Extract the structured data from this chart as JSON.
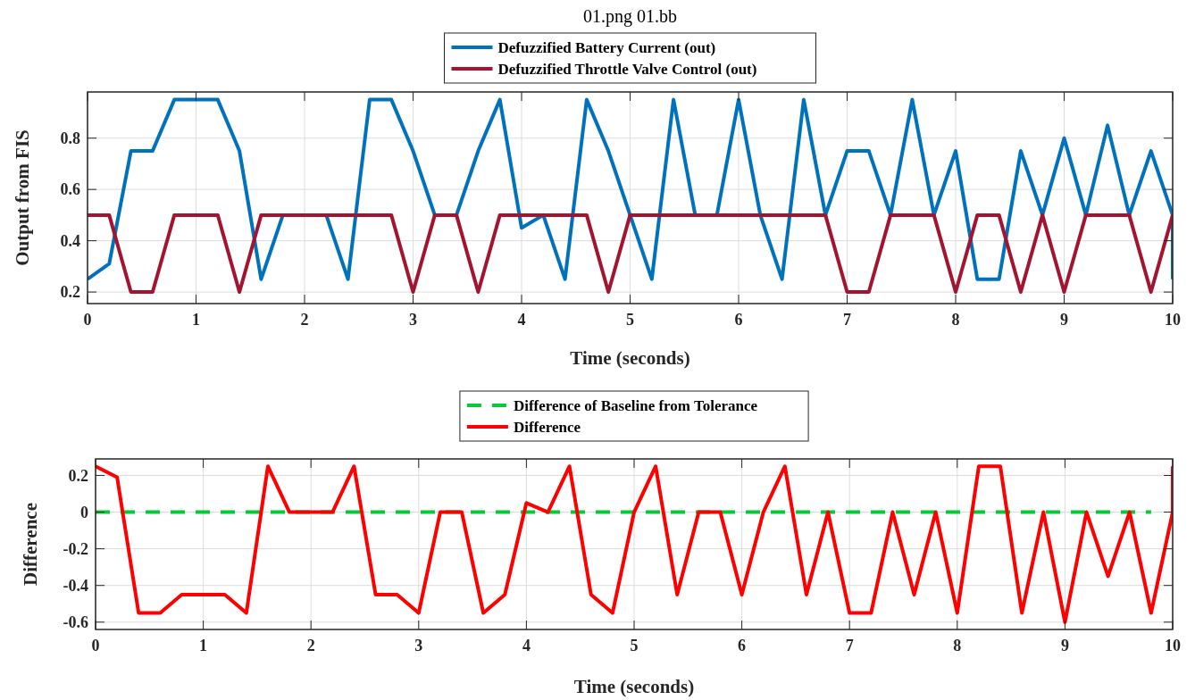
{
  "chart_data": [
    {
      "type": "line",
      "title": "01.png 01.bb",
      "xlabel": "Time (seconds)",
      "ylabel": "Output from FIS",
      "xlim": [
        0,
        10
      ],
      "ylim": [
        0.155,
        0.98
      ],
      "xticks": [
        0,
        1,
        2,
        3,
        4,
        5,
        6,
        7,
        8,
        9,
        10
      ],
      "yticks": [
        0.2,
        0.4,
        0.6,
        0.8
      ],
      "grid": true,
      "legend": "top",
      "line_style": "solid",
      "x": [
        0,
        0.2,
        0.4,
        0.6,
        0.8,
        1,
        1.2,
        1.4,
        1.6,
        1.8,
        2,
        2.2,
        2.4,
        2.6,
        2.8,
        3,
        3.2,
        3.4,
        3.6,
        3.8,
        4,
        4.2,
        4.4,
        4.6,
        4.8,
        5,
        5.2,
        5.4,
        5.6,
        5.8,
        6,
        6.2,
        6.4,
        6.6,
        6.8,
        7,
        7.2,
        7.4,
        7.6,
        7.8,
        8,
        8.2,
        8.4,
        8.6,
        8.8,
        9,
        9.2,
        9.4,
        9.6,
        9.8,
        10
      ],
      "series": [
        {
          "name": "Defuzzified Battery Current (out)",
          "color": "#0072bd",
          "x": [
            0,
            0.2,
            0.4,
            0.6,
            0.8,
            1,
            1.2,
            1.4,
            1.6,
            1.8,
            2,
            2.2,
            2.4,
            2.6,
            2.8,
            3,
            3.2,
            3.4,
            3.6,
            3.8,
            4,
            4.2,
            4.4,
            4.6,
            4.8,
            5,
            5.2,
            5.4,
            5.6,
            5.8,
            6,
            6.2,
            6.4,
            6.6,
            6.8,
            7,
            7.2,
            7.4,
            7.6,
            7.8,
            8,
            8.2,
            8.4,
            8.6,
            8.8,
            9,
            9.2,
            9.4,
            9.6,
            9.8,
            10,
            10
          ],
          "values": [
            0.25,
            0.31,
            0.75,
            0.75,
            0.95,
            0.95,
            0.95,
            0.75,
            0.25,
            0.5,
            null,
            0.5,
            0.25,
            0.95,
            0.95,
            0.75,
            0.5,
            0.5,
            0.75,
            0.95,
            0.45,
            0.5,
            0.25,
            0.95,
            0.75,
            0.5,
            0.25,
            0.95,
            0.5,
            0.5,
            0.95,
            0.5,
            0.25,
            0.95,
            0.5,
            0.75,
            0.75,
            0.5,
            0.95,
            0.5,
            0.75,
            0.25,
            0.25,
            0.75,
            0.5,
            0.8,
            0.5,
            0.85,
            0.5,
            0.75,
            0.5,
            0.25
          ]
        },
        {
          "name": "Defuzzified Throttle Valve Control (out)",
          "color": "#a2142f",
          "values": [
            0.5,
            0.5,
            0.2,
            0.2,
            0.5,
            0.5,
            0.5,
            0.2,
            0.5,
            0.5,
            0.5,
            0.5,
            0.5,
            0.5,
            0.5,
            0.2,
            0.5,
            0.5,
            0.2,
            0.5,
            0.5,
            0.5,
            0.5,
            0.5,
            0.2,
            0.5,
            0.5,
            0.5,
            0.5,
            0.5,
            0.5,
            0.5,
            0.5,
            0.5,
            0.5,
            0.2,
            0.2,
            0.5,
            0.5,
            0.5,
            0.2,
            0.5,
            0.5,
            0.2,
            0.5,
            0.2,
            0.5,
            0.5,
            0.5,
            0.2,
            0.5
          ]
        }
      ]
    },
    {
      "type": "line",
      "xlabel": "Time (seconds)",
      "ylabel": "Difference",
      "xlim": [
        0,
        10
      ],
      "ylim": [
        -0.64,
        0.29
      ],
      "xticks": [
        0,
        1,
        2,
        3,
        4,
        5,
        6,
        7,
        8,
        9,
        10
      ],
      "yticks": [
        -0.6,
        -0.4,
        -0.2,
        0,
        0.2
      ],
      "grid": true,
      "legend": "top",
      "series": [
        {
          "name": "Difference of Baseline from Tolerance",
          "color": "#00cc33",
          "line_style": "dashed",
          "x": [
            0,
            9.8
          ],
          "values": [
            0,
            0
          ]
        },
        {
          "name": "Difference",
          "color": "#ff0000",
          "line_style": "solid",
          "x": [
            0,
            0.2,
            0.4,
            0.6,
            0.8,
            1,
            1.2,
            1.4,
            1.6,
            1.8,
            2,
            2.2,
            2.4,
            2.6,
            2.8,
            3,
            3.2,
            3.4,
            3.6,
            3.8,
            4,
            4.2,
            4.4,
            4.6,
            4.8,
            5,
            5.2,
            5.4,
            5.6,
            5.8,
            6,
            6.2,
            6.4,
            6.6,
            6.8,
            7,
            7.2,
            7.4,
            7.6,
            7.8,
            8,
            8.2,
            8.4,
            8.6,
            8.8,
            9,
            9.2,
            9.4,
            9.6,
            9.8,
            10,
            10
          ],
          "values": [
            0.25,
            0.19,
            -0.55,
            -0.55,
            -0.45,
            -0.45,
            -0.45,
            -0.55,
            0.25,
            0,
            0,
            0,
            0.25,
            -0.45,
            -0.45,
            -0.55,
            0,
            0,
            -0.55,
            -0.45,
            0.05,
            0,
            0.25,
            -0.45,
            -0.55,
            0,
            0.25,
            -0.45,
            0,
            0,
            -0.45,
            0,
            0.25,
            -0.45,
            0,
            -0.55,
            -0.55,
            0,
            -0.45,
            0,
            -0.55,
            0.25,
            0.25,
            -0.55,
            0,
            -0.6,
            0,
            -0.35,
            0,
            -0.55,
            0,
            0.25
          ]
        }
      ]
    }
  ]
}
